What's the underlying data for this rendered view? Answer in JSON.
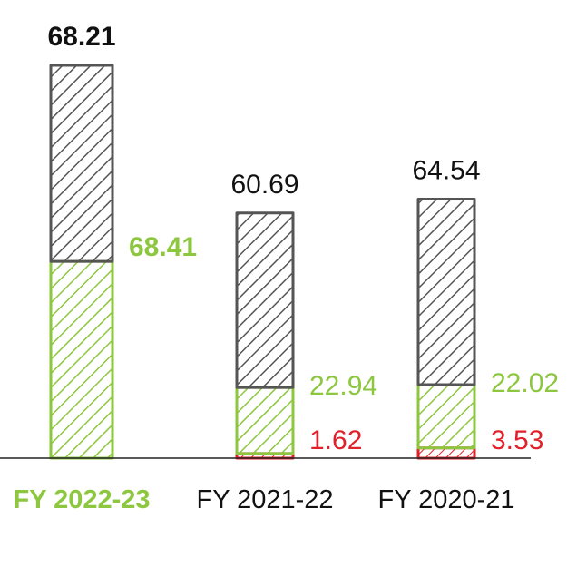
{
  "chart_data": {
    "type": "bar",
    "categories": [
      "FY 2022-23",
      "FY 2021-22",
      "FY 2020-21"
    ],
    "highlighted_category": "FY 2022-23",
    "series": [
      {
        "values": [
          68.41,
          22.94,
          22.02
        ],
        "color": "#8dc63f"
      },
      {
        "values": [
          0,
          1.62,
          3.53
        ],
        "color": "#e0202a"
      },
      {
        "values": [
          68.21,
          60.69,
          64.54
        ],
        "color": "#555555"
      }
    ],
    "value_labels": {
      "totals": [
        "68.21",
        "60.69",
        "64.54"
      ],
      "green": [
        "68.41",
        "22.94",
        "22.02"
      ],
      "red": [
        "",
        "1.62",
        "3.53"
      ]
    },
    "colors": {
      "green": "#8dc63f",
      "red": "#e0202a",
      "dark": "#555555",
      "text": "#111111"
    }
  }
}
